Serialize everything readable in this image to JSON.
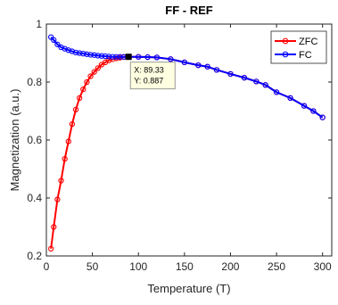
{
  "chart_data": {
    "type": "line",
    "title": "FF - REF",
    "xlabel": "Temperature (T)",
    "ylabel": "Magnetization  (a.u.)",
    "xlim": [
      0,
      310
    ],
    "ylim": [
      0.2,
      1.0
    ],
    "xticks": [
      0,
      50,
      100,
      150,
      200,
      250,
      300
    ],
    "yticks": [
      0.2,
      0.4,
      0.6,
      0.8,
      1.0
    ],
    "ytick_labels": [
      "0.2",
      "0.4",
      "0.6",
      "0.8",
      "1"
    ],
    "grid": false,
    "legend_position": "top-right",
    "series": [
      {
        "name": "ZFC",
        "color": "#ff0000",
        "marker_color": "#ff0000",
        "x": [
          5,
          8,
          12,
          16,
          20,
          24,
          28,
          32,
          36,
          40,
          44,
          48,
          52,
          56,
          60,
          64,
          68,
          72,
          76,
          80,
          84,
          89.33,
          100,
          110,
          120,
          135,
          150,
          165,
          175,
          185,
          200,
          215,
          228,
          238,
          250,
          265,
          280,
          290,
          300
        ],
        "y": [
          0.225,
          0.3,
          0.395,
          0.46,
          0.535,
          0.595,
          0.655,
          0.705,
          0.745,
          0.775,
          0.8,
          0.82,
          0.835,
          0.848,
          0.86,
          0.868,
          0.875,
          0.879,
          0.882,
          0.884,
          0.886,
          0.887,
          0.887,
          0.886,
          0.885,
          0.879,
          0.868,
          0.858,
          0.853,
          0.842,
          0.828,
          0.815,
          0.802,
          0.79,
          0.765,
          0.745,
          0.718,
          0.7,
          0.678
        ]
      },
      {
        "name": "FC",
        "color": "#0000ff",
        "marker_color": "#0000ff",
        "x": [
          5,
          8,
          12,
          16,
          20,
          24,
          28,
          32,
          36,
          40,
          44,
          48,
          52,
          56,
          60,
          64,
          68,
          72,
          76,
          80,
          84,
          89.33,
          100,
          110,
          120,
          135,
          150,
          165,
          175,
          185,
          200,
          215,
          228,
          238,
          250,
          265,
          280,
          290,
          300
        ],
        "y": [
          0.955,
          0.945,
          0.93,
          0.92,
          0.915,
          0.91,
          0.906,
          0.902,
          0.9,
          0.898,
          0.896,
          0.894,
          0.893,
          0.891,
          0.89,
          0.889,
          0.888,
          0.887,
          0.887,
          0.887,
          0.887,
          0.887,
          0.887,
          0.886,
          0.885,
          0.879,
          0.868,
          0.858,
          0.853,
          0.842,
          0.828,
          0.815,
          0.802,
          0.79,
          0.765,
          0.745,
          0.718,
          0.7,
          0.678
        ]
      }
    ],
    "datatip": {
      "x": 89.33,
      "y": 0.887,
      "line1": "X: 89.33",
      "line2": "Y: 0.887"
    }
  }
}
